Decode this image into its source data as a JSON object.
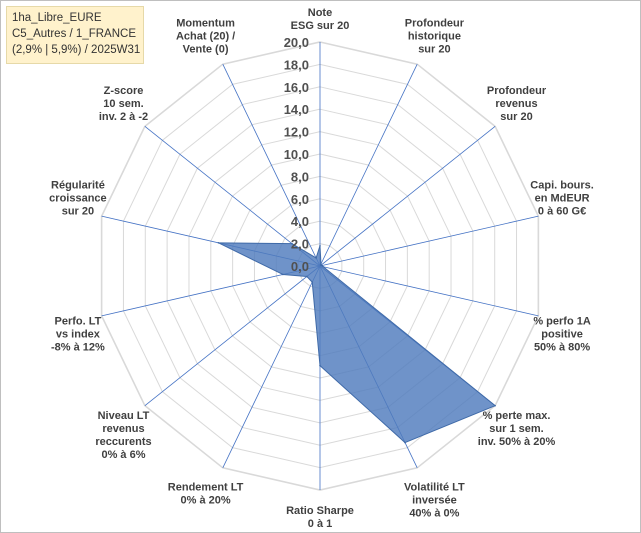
{
  "info_box": {
    "line1": "1ha_Libre_EURE",
    "line2": "C5_Autres / 1_FRANCE",
    "line3": "(2,9% | 5,9%) / 2025W31"
  },
  "colors": {
    "grid": "#d9d9d9",
    "spokes": "#4472c4",
    "fill": "#4f7bbd",
    "stroke": "#3f6aa8",
    "background": "#ffffff"
  },
  "chart_data": {
    "type": "radar",
    "rmin": 0,
    "rmax": 20,
    "tick_step": 2,
    "tick_labels": [
      "0,0",
      "2,0",
      "4,0",
      "6,0",
      "8,0",
      "10,0",
      "12,0",
      "14,0",
      "16,0",
      "18,0",
      "20,0"
    ],
    "axes": [
      {
        "lines": [
          "Note",
          "ESG sur 20"
        ]
      },
      {
        "lines": [
          "Profondeur",
          "historique",
          "sur 20"
        ]
      },
      {
        "lines": [
          "Profondeur",
          "revenus",
          "sur 20"
        ]
      },
      {
        "lines": [
          "Capi. bours.",
          "en MdEUR",
          "0 à 60 G€"
        ]
      },
      {
        "lines": [
          "% perfo 1A",
          "positive",
          "50% à 80%"
        ]
      },
      {
        "lines": [
          "% perte max.",
          "sur 1 sem.",
          "inv. 50% à 20%"
        ]
      },
      {
        "lines": [
          "Volatilité LT",
          "inversée",
          "40% à 0%"
        ]
      },
      {
        "lines": [
          "Ratio Sharpe",
          "0 à 1"
        ]
      },
      {
        "lines": [
          "Rendement LT",
          "0% à 20%"
        ]
      },
      {
        "lines": [
          "Niveau LT",
          "revenus",
          "reccurents",
          "0% à 6%"
        ]
      },
      {
        "lines": [
          "Perfo. LT",
          "vs index",
          "-8% à 12%"
        ]
      },
      {
        "lines": [
          "Régularité",
          "croissance",
          "sur 20"
        ]
      },
      {
        "lines": [
          "Z-score",
          "10 sem.",
          "inv. 2 à -2"
        ]
      },
      {
        "lines": [
          "Momentum",
          "Achat (20) /",
          "Vente (0)"
        ]
      }
    ],
    "series": [
      {
        "values": [
          1.8,
          0.2,
          0.1,
          0.2,
          0.3,
          20.0,
          17.5,
          8.9,
          1.6,
          1.5,
          3.4,
          9.3,
          3.2,
          0.8
        ]
      }
    ]
  }
}
